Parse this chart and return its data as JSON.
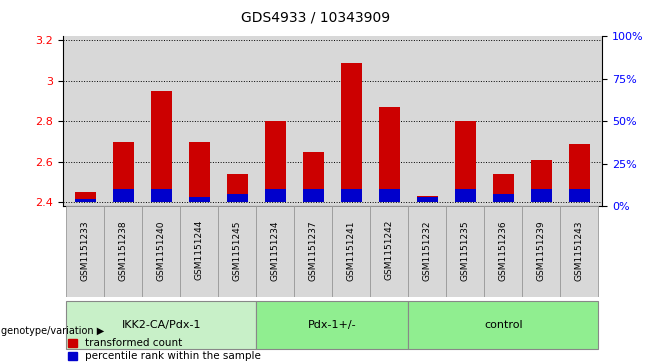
{
  "title": "GDS4933 / 10343909",
  "samples": [
    "GSM1151233",
    "GSM1151238",
    "GSM1151240",
    "GSM1151244",
    "GSM1151245",
    "GSM1151234",
    "GSM1151237",
    "GSM1151241",
    "GSM1151242",
    "GSM1151232",
    "GSM1151235",
    "GSM1151236",
    "GSM1151239",
    "GSM1151243"
  ],
  "transformed_count": [
    2.45,
    2.7,
    2.95,
    2.7,
    2.54,
    2.8,
    2.65,
    3.09,
    2.87,
    2.43,
    2.8,
    2.54,
    2.61,
    2.69
  ],
  "percentile_rank": [
    2,
    8,
    8,
    3,
    5,
    8,
    8,
    8,
    8,
    3,
    8,
    5,
    8,
    8
  ],
  "groups": [
    {
      "label": "IKK2-CA/Pdx-1",
      "start": 0,
      "end": 5,
      "color": "#c8f0c8"
    },
    {
      "label": "Pdx-1+/-",
      "start": 5,
      "end": 9,
      "color": "#90ee90"
    },
    {
      "label": "control",
      "start": 9,
      "end": 14,
      "color": "#90ee90"
    }
  ],
  "ylim_left": [
    2.38,
    3.22
  ],
  "ylim_right": [
    0,
    100
  ],
  "yticks_left": [
    2.4,
    2.6,
    2.8,
    3.0,
    3.2
  ],
  "yticks_right": [
    0,
    25,
    50,
    75,
    100
  ],
  "bar_color": "#cc0000",
  "percentile_color": "#0000cc",
  "bar_bottom": 2.4,
  "background_color": "#d8d8d8",
  "group_label_text": "genotype/variation",
  "legend_red": "transformed count",
  "legend_blue": "percentile rank within the sample",
  "pct_bar_height": 0.022
}
